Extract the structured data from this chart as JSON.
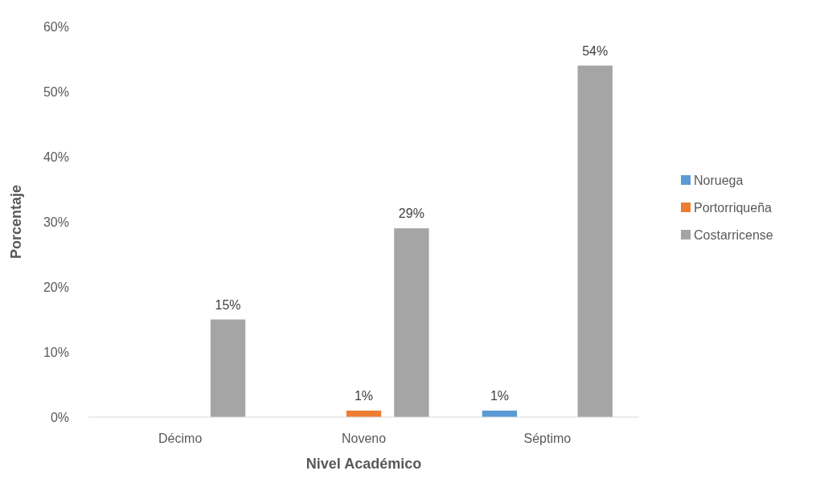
{
  "chart_data": {
    "type": "bar",
    "xlabel": "Nivel Académico",
    "ylabel": "Porcentaje",
    "categories": [
      "Décimo",
      "Noveno",
      "Séptimo"
    ],
    "series": [
      {
        "name": "Noruega",
        "color": "#5b9bd5",
        "values": [
          null,
          null,
          1
        ],
        "value_labels": [
          null,
          null,
          "1%"
        ]
      },
      {
        "name": "Portorriqueña",
        "color": "#ed7d31",
        "values": [
          null,
          1,
          null
        ],
        "value_labels": [
          null,
          "1%",
          null
        ]
      },
      {
        "name": "Costarricense",
        "color": "#a5a5a5",
        "values": [
          15,
          29,
          54
        ],
        "value_labels": [
          "15%",
          "29%",
          "54%"
        ]
      }
    ],
    "ylim": [
      0,
      60
    ],
    "yticks": [
      {
        "value": 0,
        "label": "0%"
      },
      {
        "value": 10,
        "label": "10%"
      },
      {
        "value": 20,
        "label": "20%"
      },
      {
        "value": 30,
        "label": "30%"
      },
      {
        "value": 40,
        "label": "40%"
      },
      {
        "value": 50,
        "label": "50%"
      },
      {
        "value": 60,
        "label": "60%"
      }
    ],
    "grid": false,
    "legend": "right"
  }
}
